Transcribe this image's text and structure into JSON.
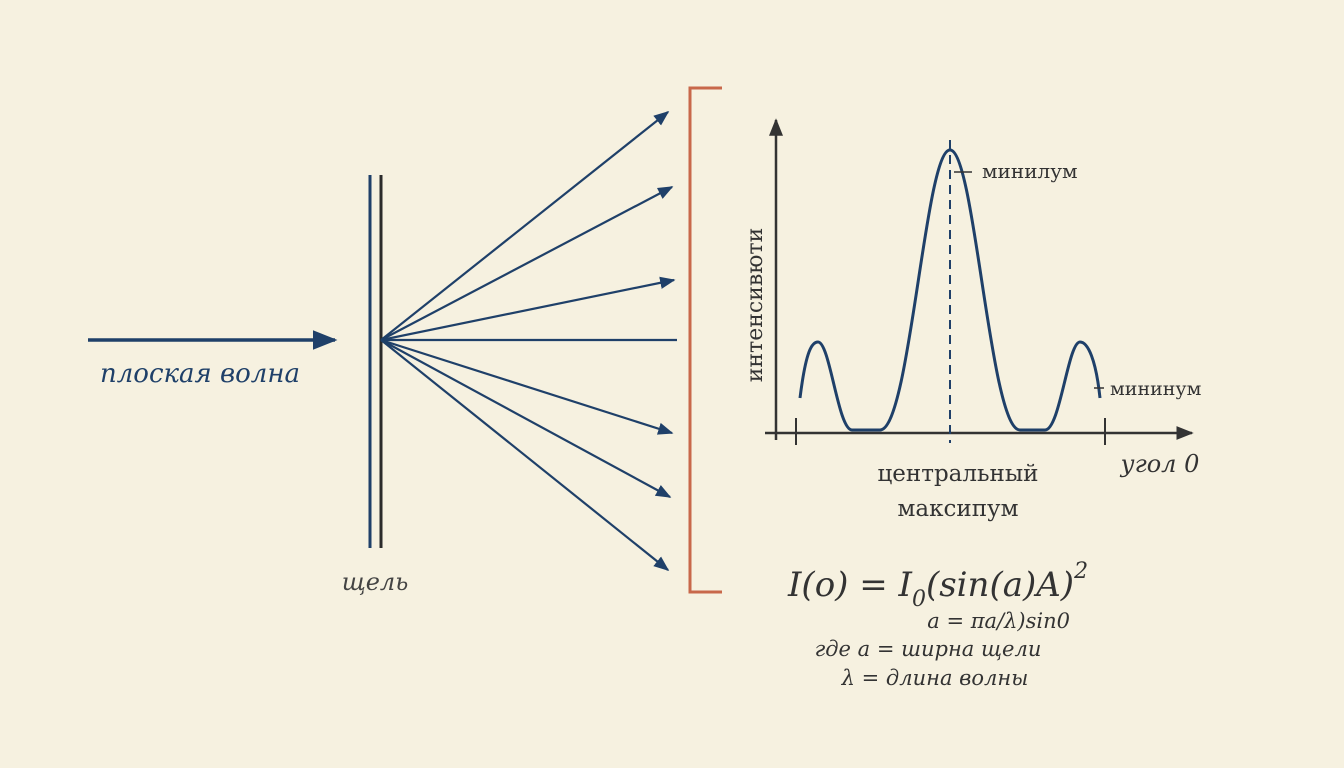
{
  "wave_label": "плоская волна",
  "slit_label": "щель",
  "graph": {
    "y_axis_label": "интенсивюти",
    "peak_label": "минилум",
    "side_label": "мининум",
    "center_label_lines": [
      "центральный",
      "максипум"
    ],
    "x_axis_label": "угол 0"
  },
  "formula": {
    "lhs": "I(o) = I",
    "subscript": "0",
    "rhs": "(sin(a)A)",
    "superscript": "2",
    "lines": [
      "a = πa/λ)sin0",
      "где a = ширна щели",
      "λ = длина волны"
    ]
  }
}
